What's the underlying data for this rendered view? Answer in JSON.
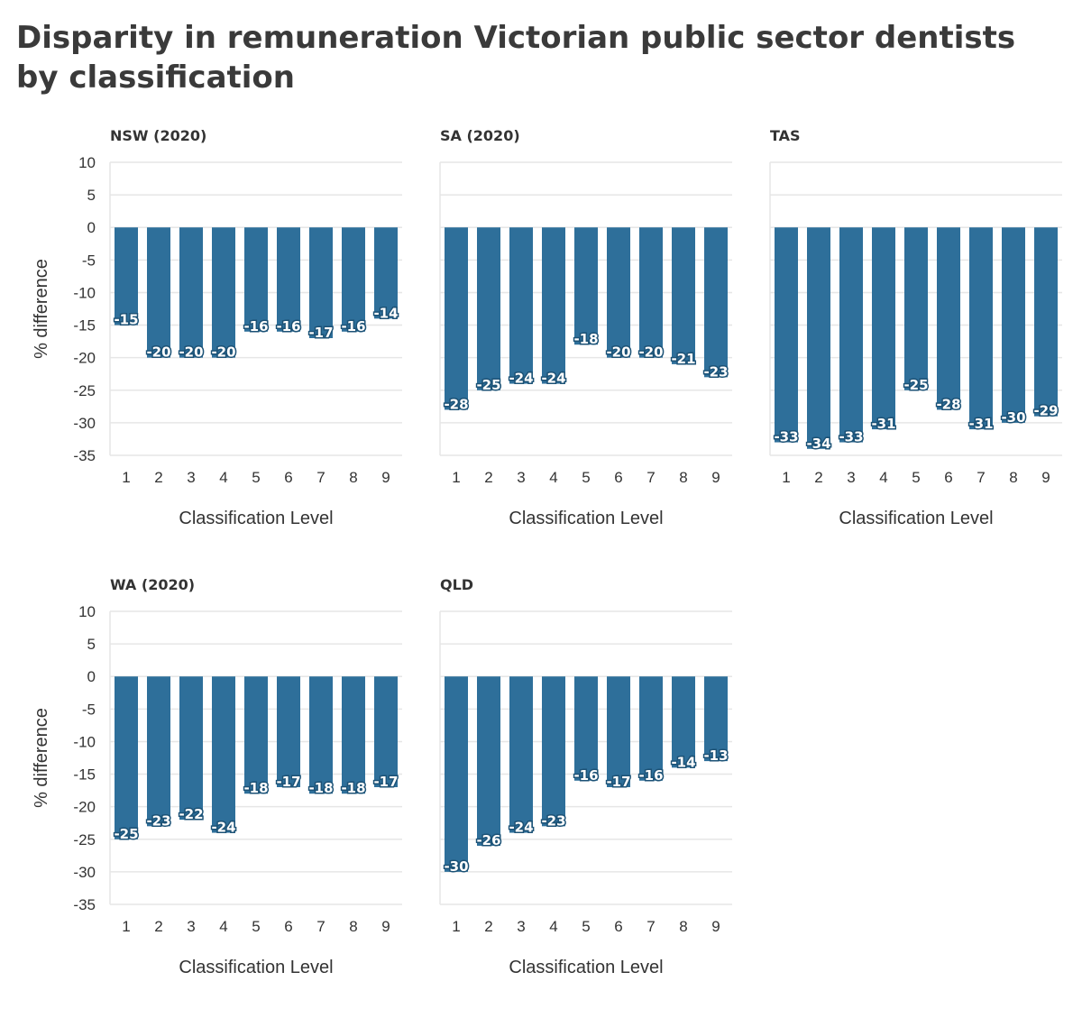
{
  "title": "Disparity in remuneration Victorian public sector dentists by classification",
  "colors": {
    "bar": "#2e6f9a",
    "grid": "#e6e6e6",
    "label_outline": "#1c5276"
  },
  "chart_data": [
    {
      "type": "bar",
      "panel": "NSW (2020)",
      "categories": [
        "1",
        "2",
        "3",
        "4",
        "5",
        "6",
        "7",
        "8",
        "9"
      ],
      "values": [
        -15,
        -20,
        -20,
        -20,
        -16,
        -16,
        -17,
        -16,
        -14
      ],
      "xlabel": "Classification Level",
      "ylabel": "% difference",
      "ylim": [
        -35,
        10
      ],
      "yticks": [
        "10",
        "5",
        "0",
        "-5",
        "-10",
        "-15",
        "-20",
        "-25",
        "-30",
        "-35"
      ],
      "grid": true
    },
    {
      "type": "bar",
      "panel": "SA (2020)",
      "categories": [
        "1",
        "2",
        "3",
        "4",
        "5",
        "6",
        "7",
        "8",
        "9"
      ],
      "values": [
        -28,
        -25,
        -24,
        -24,
        -18,
        -20,
        -20,
        -21,
        -23
      ],
      "xlabel": "Classification Level",
      "ylabel": "",
      "ylim": [
        -35,
        10
      ],
      "yticks": [],
      "grid": true
    },
    {
      "type": "bar",
      "panel": "TAS",
      "categories": [
        "1",
        "2",
        "3",
        "4",
        "5",
        "6",
        "7",
        "8",
        "9"
      ],
      "values": [
        -33,
        -34,
        -33,
        -31,
        -25,
        -28,
        -31,
        -30,
        -29
      ],
      "xlabel": "Classification Level",
      "ylabel": "",
      "ylim": [
        -35,
        10
      ],
      "yticks": [],
      "grid": true
    },
    {
      "type": "bar",
      "panel": "WA (2020)",
      "categories": [
        "1",
        "2",
        "3",
        "4",
        "5",
        "6",
        "7",
        "8",
        "9"
      ],
      "values": [
        -25,
        -23,
        -22,
        -24,
        -18,
        -17,
        -18,
        -18,
        -17
      ],
      "xlabel": "Classification Level",
      "ylabel": "% difference",
      "ylim": [
        -35,
        10
      ],
      "yticks": [
        "10",
        "5",
        "0",
        "-5",
        "-10",
        "-15",
        "-20",
        "-25",
        "-30",
        "-35"
      ],
      "grid": true
    },
    {
      "type": "bar",
      "panel": "QLD",
      "categories": [
        "1",
        "2",
        "3",
        "4",
        "5",
        "6",
        "7",
        "8",
        "9"
      ],
      "values": [
        -30,
        -26,
        -24,
        -23,
        -16,
        -17,
        -16,
        -14,
        -13
      ],
      "xlabel": "Classification Level",
      "ylabel": "",
      "ylim": [
        -35,
        10
      ],
      "yticks": [],
      "grid": true
    }
  ]
}
